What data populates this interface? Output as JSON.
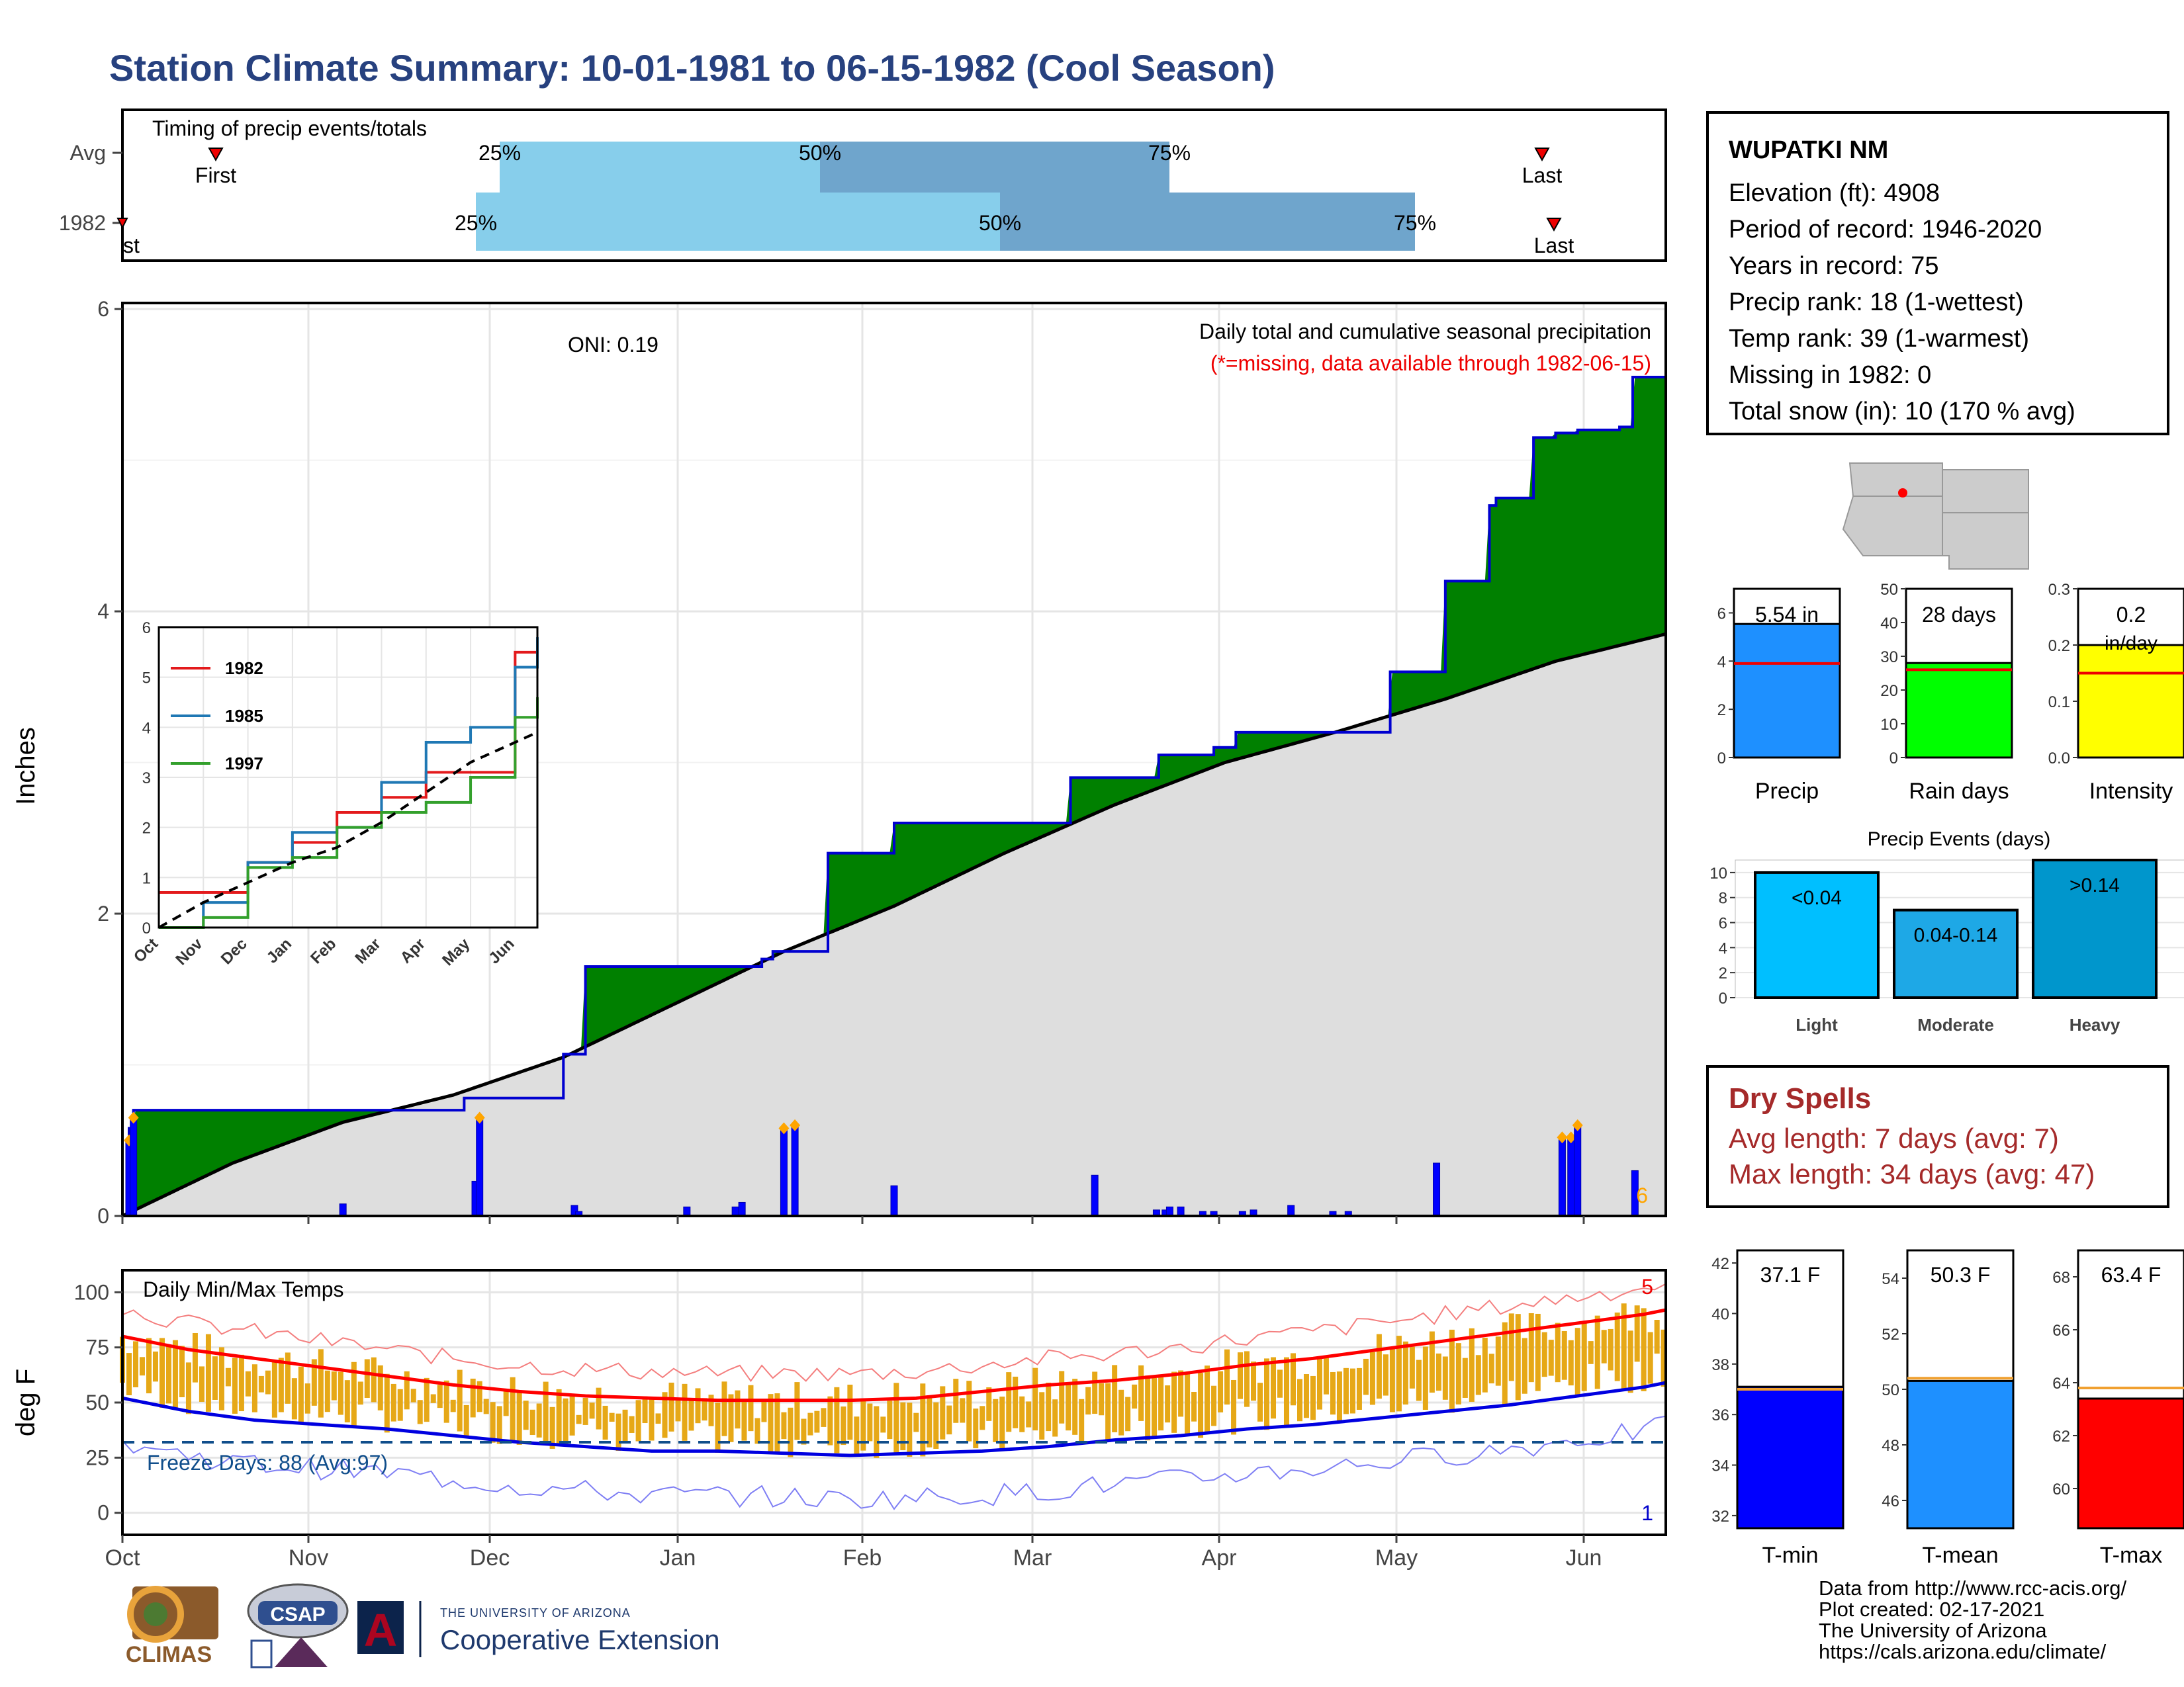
{
  "title": "Station Climate Summary: 10-01-1981 to 06-15-1982 (Cool Season)",
  "timing": {
    "label": "Timing of precip events/totals",
    "rows": [
      "Avg",
      "1982"
    ],
    "first_label": "First",
    "first_clipped_label": "st",
    "last_label": "Last",
    "q25": "25%",
    "q50": "50%",
    "q75": "75%"
  },
  "station": {
    "name": "WUPATKI NM",
    "lines": [
      "Elevation (ft): 4908",
      "Period of record: 1946-2020",
      "Years in record: 75",
      "Precip rank: 18 (1-wettest)",
      "Temp rank: 39 (1-warmest)",
      "Missing in 1982: 0",
      "Total snow (in): 10 (170 % avg)"
    ]
  },
  "precip_panel": {
    "ylabel": "Inches",
    "oni": "ONI: 0.19",
    "caption": "Daily total and cumulative seasonal precipitation",
    "missing_note": "(*=missing, data available through 1982-06-15)",
    "corner_count": "6",
    "yticks": [
      "0",
      "2",
      "4",
      "6"
    ]
  },
  "temp_panel": {
    "ylabel": "deg F",
    "title": "Daily Min/Max Temps",
    "freeze": "Freeze Days: 88 (Avg:97)",
    "count_top": "5",
    "count_bottom": "1",
    "yticks": [
      "0",
      "25",
      "50",
      "75",
      "100"
    ]
  },
  "months": [
    "Oct",
    "Nov",
    "Dec",
    "Jan",
    "Feb",
    "Mar",
    "Apr",
    "May",
    "Jun"
  ],
  "inset": {
    "months": [
      "Oct",
      "Nov",
      "Dec",
      "Jan",
      "Feb",
      "Mar",
      "Apr",
      "May",
      "Jun"
    ],
    "yticks": [
      "0",
      "1",
      "2",
      "3",
      "4",
      "5",
      "6"
    ]
  },
  "bars_small": {
    "precip": {
      "value_label": "5.54 in",
      "name": "Precip",
      "color": "#1e90ff",
      "yticks": [
        "0",
        "2",
        "4",
        "6"
      ]
    },
    "raindays": {
      "value_label": "28 days",
      "name": "Rain days",
      "color": "#00ff00",
      "yticks": [
        "0",
        "10",
        "20",
        "30",
        "40",
        "50"
      ]
    },
    "intensity": {
      "value_label": "0.2",
      "unit": "in/day",
      "name": "Intensity",
      "color": "#ffff00",
      "yticks": [
        "0.0",
        "0.1",
        "0.2",
        "0.3"
      ]
    }
  },
  "events": {
    "title": "Precip Events (days)",
    "categories": [
      "Light",
      "Moderate",
      "Heavy"
    ],
    "labels": [
      "<0.04",
      "0.04-0.14",
      ">0.14"
    ],
    "yticks": [
      "0",
      "2",
      "4",
      "6",
      "8",
      "10"
    ]
  },
  "dry_spells": {
    "title": "Dry Spells",
    "avg": "Avg length: 7 days (avg: 7)",
    "max": "Max length: 34 days (avg: 47)"
  },
  "temps_small": {
    "tmin": {
      "value_label": "37.1 F",
      "name": "T-min",
      "color": "#0000ff",
      "yticks": [
        "32",
        "34",
        "36",
        "38",
        "40",
        "42"
      ]
    },
    "tmean": {
      "value_label": "50.3 F",
      "name": "T-mean",
      "color": "#1e90ff",
      "yticks": [
        "46",
        "48",
        "50",
        "52",
        "54"
      ]
    },
    "tmax": {
      "value_label": "63.4 F",
      "name": "T-max",
      "color": "#ff0000",
      "yticks": [
        "60",
        "62",
        "64",
        "66",
        "68"
      ]
    }
  },
  "credits": [
    "Data from http://www.rcc-acis.org/",
    "Plot created: 02-17-2021",
    "The University of Arizona",
    "https://cals.arizona.edu/climate/"
  ],
  "logos": {
    "climas": "CLIMAS",
    "csap": "CSAP",
    "ext_small": "THE UNIVERSITY OF ARIZONA",
    "ext": "Cooperative Extension",
    "ua": "A"
  },
  "chart_data": [
    {
      "type": "area",
      "name": "cumulative_precip",
      "xlabel": "",
      "ylabel": "Inches",
      "ylim": [
        0,
        6
      ],
      "x_days": [
        0,
        3,
        5,
        60,
        90,
        120,
        150,
        155,
        165,
        180,
        200,
        210,
        230,
        245,
        255,
        265,
        280,
        285,
        290,
        295,
        305,
        320,
        335,
        350,
        355,
        365,
        375,
        380,
        395,
        415,
        430,
        455,
        470,
        475,
        480,
        495,
        500,
        505,
        516,
        530,
        535,
        550,
        560,
        575,
        590,
        600,
        620,
        623,
        640,
        650,
        660,
        670,
        679,
        685,
        693,
        695,
        700
      ],
      "y": [
        0,
        0.58,
        0.7,
        0.7,
        0.7,
        0.7,
        0.7,
        0.78,
        0.78,
        0.78,
        1.07,
        1.65,
        1.65,
        1.65,
        1.65,
        1.65,
        1.65,
        1.65,
        1.7,
        1.75,
        1.75,
        2.4,
        2.4,
        2.6,
        2.6,
        2.6,
        2.6,
        2.6,
        2.6,
        2.6,
        2.9,
        2.9,
        3.05,
        3.05,
        3.05,
        3.1,
        3.1,
        3.2,
        3.2,
        3.2,
        3.2,
        3.2,
        3.2,
        3.6,
        3.6,
        4.2,
        4.7,
        4.75,
        5.15,
        5.18,
        5.2,
        5.2,
        5.22,
        5.55,
        5.55,
        5.55,
        5.55
      ],
      "avg_line": {
        "x_days": [
          0,
          50,
          100,
          150,
          200,
          250,
          300,
          350,
          400,
          450,
          500,
          550,
          600,
          650,
          700
        ],
        "y": [
          0,
          0.35,
          0.62,
          0.8,
          1.05,
          1.4,
          1.75,
          2.05,
          2.4,
          2.72,
          3.0,
          3.2,
          3.42,
          3.67,
          3.85
        ]
      }
    },
    {
      "type": "bar",
      "name": "daily_precip",
      "x_days": [
        3,
        5,
        100,
        160,
        162,
        205,
        207,
        256,
        278,
        281,
        300,
        305,
        350,
        441,
        469,
        473,
        475,
        480,
        490,
        495,
        508,
        513,
        530,
        549,
        556,
        596,
        653,
        657,
        660,
        686
      ],
      "y": [
        0.5,
        0.65,
        0.08,
        0.23,
        0.65,
        0.07,
        0.03,
        0.06,
        0.06,
        0.09,
        0.58,
        0.6,
        0.2,
        0.27,
        0.04,
        0.04,
        0.06,
        0.06,
        0.03,
        0.03,
        0.03,
        0.04,
        0.07,
        0.03,
        0.03,
        0.35,
        0.52,
        0.52,
        0.6,
        0.3
      ]
    },
    {
      "type": "line",
      "name": "inset_cumulative",
      "xlabel": "",
      "ylabel": "",
      "ylim": [
        0,
        6
      ],
      "categories": [
        "Oct",
        "Nov",
        "Dec",
        "Jan",
        "Feb",
        "Mar",
        "Apr",
        "May",
        "Jun"
      ],
      "x": [
        0,
        1,
        2,
        3,
        4,
        5,
        6,
        7,
        8,
        8.5
      ],
      "series": [
        {
          "name": "1982",
          "color": "#e31a1c",
          "values": [
            0.7,
            0.7,
            1.3,
            1.7,
            2.3,
            2.6,
            3.1,
            3.1,
            5.5,
            5.6
          ]
        },
        {
          "name": "1985",
          "color": "#1f78b4",
          "values": [
            0,
            0.5,
            1.3,
            1.9,
            2.0,
            2.9,
            3.7,
            4.0,
            5.2,
            5.8
          ]
        },
        {
          "name": "1997",
          "color": "#33a02c",
          "values": [
            0,
            0.2,
            1.2,
            1.4,
            2.0,
            2.3,
            2.5,
            3.0,
            4.2,
            4.6
          ]
        }
      ],
      "avg_series": {
        "values": [
          0,
          0.5,
          0.9,
          1.3,
          1.6,
          2.1,
          2.7,
          3.3,
          3.7,
          3.9
        ]
      }
    },
    {
      "type": "bar",
      "name": "temperature_range",
      "ylabel": "deg F",
      "ylim": [
        -10,
        110
      ],
      "avg_max": {
        "x_days": [
          0,
          30,
          60,
          90,
          120,
          150,
          180,
          210,
          240,
          270,
          300,
          330,
          360,
          390,
          420,
          450,
          480,
          510,
          540,
          570,
          600,
          630,
          660,
          690,
          700
        ],
        "y": [
          80,
          74,
          70,
          66,
          62,
          58,
          55,
          53,
          52,
          51,
          51,
          51,
          52,
          55,
          58,
          60,
          63,
          67,
          70,
          74,
          78,
          82,
          86,
          90,
          92
        ]
      },
      "avg_min": {
        "x_days": [
          0,
          30,
          60,
          90,
          120,
          150,
          180,
          210,
          240,
          270,
          300,
          330,
          360,
          390,
          420,
          450,
          480,
          510,
          540,
          570,
          600,
          630,
          660,
          690,
          700
        ],
        "y": [
          52,
          46,
          42,
          40,
          38,
          35,
          32,
          30,
          28,
          28,
          27,
          26,
          27,
          28,
          30,
          33,
          35,
          38,
          40,
          43,
          46,
          49,
          53,
          57,
          59
        ]
      },
      "freeze_line": 32
    },
    {
      "type": "bar",
      "name": "season_precip",
      "categories": [
        "Precip"
      ],
      "values": [
        5.54
      ],
      "avg": 3.9,
      "ylim": [
        0,
        7
      ]
    },
    {
      "type": "bar",
      "name": "rain_days",
      "categories": [
        "Rain days"
      ],
      "values": [
        28
      ],
      "avg": 26,
      "ylim": [
        0,
        50
      ]
    },
    {
      "type": "bar",
      "name": "intensity",
      "categories": [
        "Intensity"
      ],
      "values": [
        0.2
      ],
      "avg": 0.15,
      "ylim": [
        0,
        0.3
      ]
    },
    {
      "type": "bar",
      "name": "precip_events",
      "title": "Precip Events (days)",
      "categories": [
        "Light",
        "Moderate",
        "Heavy"
      ],
      "values": [
        10,
        7,
        11
      ],
      "ylim": [
        0,
        11
      ]
    },
    {
      "type": "bar",
      "name": "tmin",
      "categories": [
        "T-min"
      ],
      "values": [
        37.1
      ],
      "avg": 37.0,
      "ylim": [
        31.5,
        42.5
      ]
    },
    {
      "type": "bar",
      "name": "tmean",
      "categories": [
        "T-mean"
      ],
      "values": [
        50.3
      ],
      "avg": 50.4,
      "ylim": [
        45,
        55
      ]
    },
    {
      "type": "bar",
      "name": "tmax",
      "categories": [
        "T-max"
      ],
      "values": [
        63.4
      ],
      "avg": 63.8,
      "ylim": [
        58.5,
        69
      ]
    }
  ]
}
